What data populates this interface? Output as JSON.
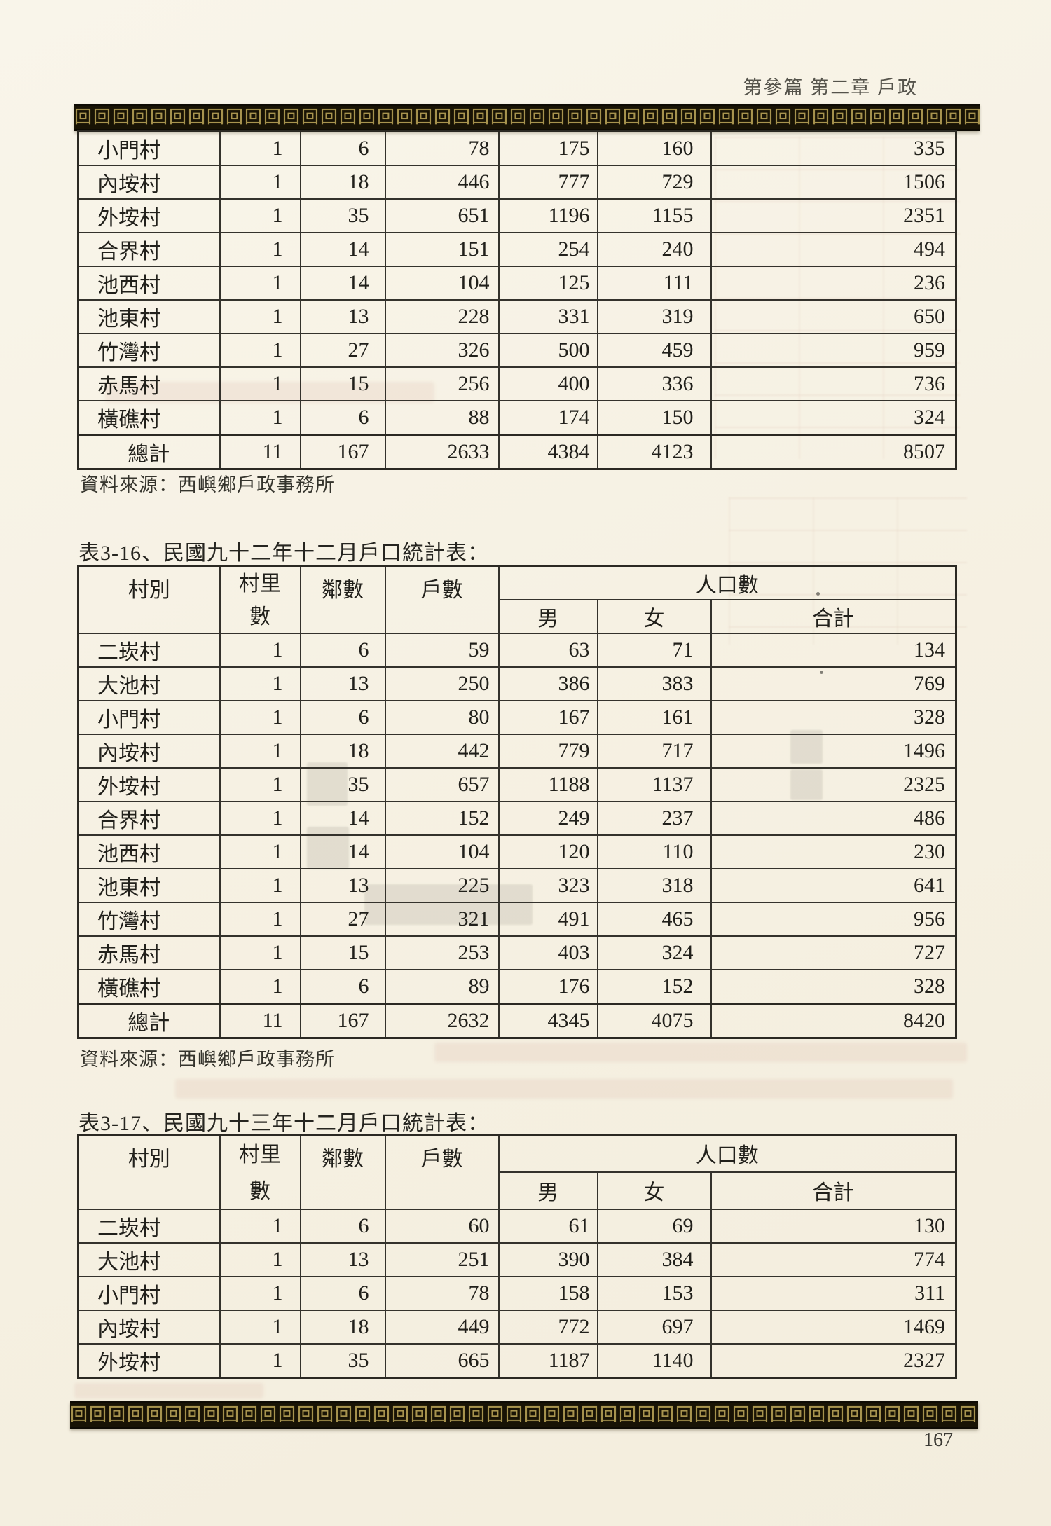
{
  "document": {
    "running_header": "第參篇 第二章 戶政",
    "page_number": "167"
  },
  "table_header": {
    "village": "村別",
    "village_count_line1": "村里",
    "village_count_line2": "數",
    "neighborhoods": "鄰數",
    "households": "戶數",
    "population": "人口數",
    "male": "男",
    "female": "女",
    "total": "合計"
  },
  "tables": [
    {
      "name": "population-table-continued",
      "title": "",
      "source": "資料來源：西嶼鄉戶政事務所",
      "rows": [
        [
          "小門村",
          "1",
          "6",
          "78",
          "175",
          "160",
          "335"
        ],
        [
          "內垵村",
          "1",
          "18",
          "446",
          "777",
          "729",
          "1506"
        ],
        [
          "外垵村",
          "1",
          "35",
          "651",
          "1196",
          "1155",
          "2351"
        ],
        [
          "合界村",
          "1",
          "14",
          "151",
          "254",
          "240",
          "494"
        ],
        [
          "池西村",
          "1",
          "14",
          "104",
          "125",
          "111",
          "236"
        ],
        [
          "池東村",
          "1",
          "13",
          "228",
          "331",
          "319",
          "650"
        ],
        [
          "竹灣村",
          "1",
          "27",
          "326",
          "500",
          "459",
          "959"
        ],
        [
          "赤馬村",
          "1",
          "15",
          "256",
          "400",
          "336",
          "736"
        ],
        [
          "橫礁村",
          "1",
          "6",
          "88",
          "174",
          "150",
          "324"
        ],
        [
          "總計",
          "11",
          "167",
          "2633",
          "4384",
          "4123",
          "8507"
        ]
      ]
    },
    {
      "name": "table-3-16",
      "title": "表3-16、民國九十二年十二月戶口統計表：",
      "source": "資料來源：西嶼鄉戶政事務所",
      "rows": [
        [
          "二崁村",
          "1",
          "6",
          "59",
          "63",
          "71",
          "134"
        ],
        [
          "大池村",
          "1",
          "13",
          "250",
          "386",
          "383",
          "769"
        ],
        [
          "小門村",
          "1",
          "6",
          "80",
          "167",
          "161",
          "328"
        ],
        [
          "內垵村",
          "1",
          "18",
          "442",
          "779",
          "717",
          "1496"
        ],
        [
          "外垵村",
          "1",
          "35",
          "657",
          "1188",
          "1137",
          "2325"
        ],
        [
          "合界村",
          "1",
          "14",
          "152",
          "249",
          "237",
          "486"
        ],
        [
          "池西村",
          "1",
          "14",
          "104",
          "120",
          "110",
          "230"
        ],
        [
          "池東村",
          "1",
          "13",
          "225",
          "323",
          "318",
          "641"
        ],
        [
          "竹灣村",
          "1",
          "27",
          "321",
          "491",
          "465",
          "956"
        ],
        [
          "赤馬村",
          "1",
          "15",
          "253",
          "403",
          "324",
          "727"
        ],
        [
          "橫礁村",
          "1",
          "6",
          "89",
          "176",
          "152",
          "328"
        ],
        [
          "總計",
          "11",
          "167",
          "2632",
          "4345",
          "4075",
          "8420"
        ]
      ]
    },
    {
      "name": "table-3-17",
      "title": "表3-17、民國九十三年十二月戶口統計表：",
      "source": "",
      "rows": [
        [
          "二崁村",
          "1",
          "6",
          "60",
          "61",
          "69",
          "130"
        ],
        [
          "大池村",
          "1",
          "13",
          "251",
          "390",
          "384",
          "774"
        ],
        [
          "小門村",
          "1",
          "6",
          "78",
          "158",
          "153",
          "311"
        ],
        [
          "內垵村",
          "1",
          "18",
          "449",
          "772",
          "697",
          "1469"
        ],
        [
          "外垵村",
          "1",
          "35",
          "665",
          "1187",
          "1140",
          "2327"
        ]
      ]
    }
  ]
}
